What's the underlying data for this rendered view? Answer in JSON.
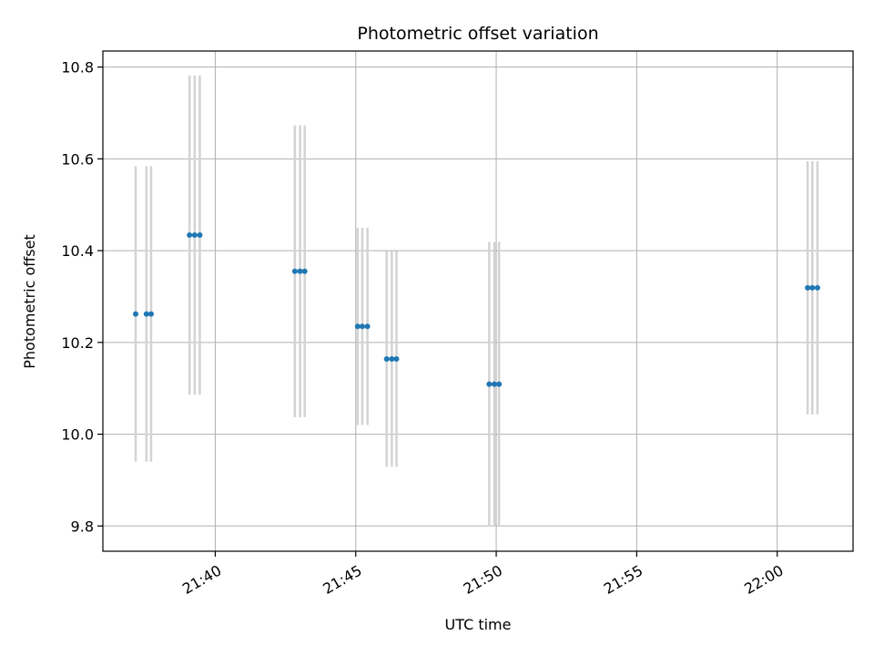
{
  "chart_data": {
    "type": "scatter",
    "title": "Photometric offset variation",
    "xlabel": "UTC time",
    "ylabel": "Photometric offset",
    "xlim": [
      "21:36:00",
      "22:02:42"
    ],
    "ylim": [
      9.745,
      10.835
    ],
    "x_ticks": [
      "21:40",
      "21:45",
      "21:50",
      "21:55",
      "22:00"
    ],
    "x_tick_values": [
      "21:40:00",
      "21:45:00",
      "21:50:00",
      "21:55:00",
      "22:00:00"
    ],
    "y_ticks": [
      "9.8",
      "10.0",
      "10.2",
      "10.4",
      "10.6",
      "10.8"
    ],
    "y_tick_values": [
      9.8,
      10.0,
      10.2,
      10.4,
      10.6,
      10.8
    ],
    "grid": true,
    "marker_color": "#1f77b4",
    "errorbar_color": "#d3d3d3",
    "points": [
      {
        "x": "21:37:10",
        "y": 10.262,
        "err": 0.322
      },
      {
        "x": "21:37:33",
        "y": 10.262,
        "err": 0.322
      },
      {
        "x": "21:37:43",
        "y": 10.262,
        "err": 0.322
      },
      {
        "x": "21:39:05",
        "y": 10.434,
        "err": 0.348
      },
      {
        "x": "21:39:16",
        "y": 10.434,
        "err": 0.348
      },
      {
        "x": "21:39:27",
        "y": 10.434,
        "err": 0.348
      },
      {
        "x": "21:42:50",
        "y": 10.355,
        "err": 0.318
      },
      {
        "x": "21:43:01",
        "y": 10.355,
        "err": 0.318
      },
      {
        "x": "21:43:11",
        "y": 10.355,
        "err": 0.318
      },
      {
        "x": "21:45:04",
        "y": 10.235,
        "err": 0.215
      },
      {
        "x": "21:45:14",
        "y": 10.235,
        "err": 0.215
      },
      {
        "x": "21:45:25",
        "y": 10.235,
        "err": 0.215
      },
      {
        "x": "21:46:06",
        "y": 10.164,
        "err": 0.235
      },
      {
        "x": "21:46:17",
        "y": 10.164,
        "err": 0.235
      },
      {
        "x": "21:46:27",
        "y": 10.164,
        "err": 0.235
      },
      {
        "x": "21:49:45",
        "y": 10.109,
        "err": 0.31
      },
      {
        "x": "21:49:56",
        "y": 10.109,
        "err": 0.31
      },
      {
        "x": "21:50:06",
        "y": 10.109,
        "err": 0.31
      },
      {
        "x": "22:01:05",
        "y": 10.319,
        "err": 0.276
      },
      {
        "x": "22:01:15",
        "y": 10.319,
        "err": 0.276
      },
      {
        "x": "22:01:26",
        "y": 10.319,
        "err": 0.276
      }
    ]
  }
}
